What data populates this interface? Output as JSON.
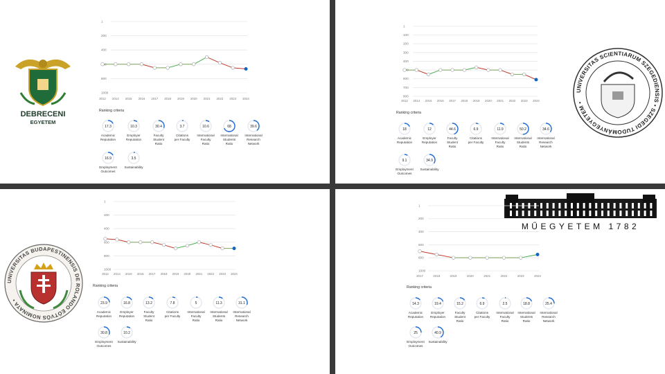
{
  "colors": {
    "rise": "#4caf50",
    "fall": "#c0392b",
    "current": "#1565c0",
    "ring": "#1e6bd6",
    "ring_track": "#e3e8ef",
    "grid": "#e6e6e6",
    "divider": "#3a3a3a"
  },
  "panels": [
    {
      "id": "debrecen",
      "logo": {
        "type": "debrecen-crest",
        "line1": "DEBRECENI",
        "line2": "EGYETEM"
      },
      "chart_data": {
        "type": "line",
        "y_ticks": [
          "1",
          "200",
          "400",
          "600",
          "800",
          "1000"
        ],
        "y_tick_values": [
          1,
          200,
          400,
          600,
          800,
          1000
        ],
        "ylim": [
          1,
          1000
        ],
        "y_inverted": true,
        "x": [
          "2012",
          "2014",
          "2015",
          "2016",
          "2017",
          "2018",
          "2019",
          "2020",
          "2021",
          "2022",
          "2023",
          "2024"
        ],
        "values": [
          600,
          600,
          600,
          600,
          650,
          650,
          600,
          600,
          500,
          580,
          650,
          665
        ],
        "grid": true
      },
      "criteria_title": "Ranking criteria",
      "criteria": [
        {
          "value": "17.3",
          "label": [
            "Academic",
            "Reputation"
          ]
        },
        {
          "value": "10.3",
          "label": [
            "Employer",
            "Reputation"
          ]
        },
        {
          "value": "30.4",
          "label": [
            "Faculty",
            "Student",
            "Ratio"
          ]
        },
        {
          "value": "3.7",
          "label": [
            "Citations",
            "per Faculty"
          ]
        },
        {
          "value": "10.6",
          "label": [
            "International",
            "Faculty",
            "Ratio"
          ]
        },
        {
          "value": "68",
          "label": [
            "International",
            "Students",
            "Ratio"
          ]
        },
        {
          "value": "39.6",
          "label": [
            "International",
            "Research",
            "Network"
          ]
        },
        {
          "value": "16.9",
          "label": [
            "Employment",
            "Outcomes"
          ]
        },
        {
          "value": "3.5",
          "label": [
            "Sustainability"
          ]
        }
      ]
    },
    {
      "id": "szeged",
      "logo": {
        "type": "szeged-seal",
        "ring_text": "UNIVERSITAS SCIENTIARUM SZEGEDIENSIS • SZEGEDI TUDOMÁNYEGYETEM •"
      },
      "chart_data": {
        "type": "line",
        "y_ticks": [
          "1",
          "100",
          "200",
          "300",
          "400",
          "500",
          "600",
          "700",
          "800"
        ],
        "y_tick_values": [
          1,
          100,
          200,
          300,
          400,
          500,
          600,
          700,
          800
        ],
        "ylim": [
          1,
          800
        ],
        "y_inverted": true,
        "x": [
          "2012",
          "2014",
          "2015",
          "2016",
          "2017",
          "2018",
          "2019",
          "2020",
          "2021",
          "2022",
          "2023",
          "2024"
        ],
        "values": [
          500,
          500,
          550,
          500,
          500,
          500,
          470,
          500,
          500,
          550,
          550,
          610
        ],
        "grid": true
      },
      "criteria_title": "Ranking criteria",
      "criteria": [
        {
          "value": "18",
          "label": [
            "Academic",
            "Reputation"
          ]
        },
        {
          "value": "12",
          "label": [
            "Employer",
            "Reputation"
          ]
        },
        {
          "value": "44.6",
          "label": [
            "Faculty",
            "Student",
            "Ratio"
          ]
        },
        {
          "value": "6.9",
          "label": [
            "Citations",
            "per Faculty"
          ]
        },
        {
          "value": "11.9",
          "label": [
            "International",
            "Faculty",
            "Ratio"
          ]
        },
        {
          "value": "50.2",
          "label": [
            "International",
            "Students",
            "Ratio"
          ]
        },
        {
          "value": "34.6",
          "label": [
            "International",
            "Research",
            "Network"
          ]
        },
        {
          "value": "9.1",
          "label": [
            "Employment",
            "Outcomes"
          ]
        },
        {
          "value": "34.9",
          "label": [
            "Sustainability"
          ]
        }
      ]
    },
    {
      "id": "elte",
      "logo": {
        "type": "elte-seal",
        "ring_text": "UNIVERSITAS BUDAPESTINENSIS DE ROLANDO EÖTVÖS NOMINATA • "
      },
      "chart_data": {
        "type": "line",
        "y_ticks": [
          "1",
          "200",
          "400",
          "600",
          "800",
          "1000"
        ],
        "y_tick_values": [
          1,
          200,
          400,
          600,
          800,
          1000
        ],
        "ylim": [
          1,
          1000
        ],
        "y_inverted": true,
        "x": [
          "2012",
          "2014",
          "2015",
          "2016",
          "2017",
          "2018",
          "2019",
          "2020",
          "2021",
          "2022",
          "2023",
          "2024"
        ],
        "values": [
          550,
          560,
          600,
          600,
          600,
          640,
          690,
          650,
          600,
          640,
          690,
          690
        ],
        "grid": true
      },
      "criteria_title": "Ranking criteria",
      "criteria": [
        {
          "value": "23.9",
          "label": [
            "Academic",
            "Reputation"
          ]
        },
        {
          "value": "16.8",
          "label": [
            "Employer",
            "Reputation"
          ]
        },
        {
          "value": "13.2",
          "label": [
            "Faculty",
            "Student",
            "Ratio"
          ]
        },
        {
          "value": "7.8",
          "label": [
            "Citations",
            "per Faculty"
          ]
        },
        {
          "value": "5",
          "label": [
            "International",
            "Faculty",
            "Ratio"
          ]
        },
        {
          "value": "11.3",
          "label": [
            "International",
            "Students",
            "Ratio"
          ]
        },
        {
          "value": "31.1",
          "label": [
            "International",
            "Research",
            "Network"
          ]
        },
        {
          "value": "30.8",
          "label": [
            "Employment",
            "Outcomes"
          ]
        },
        {
          "value": "10.2",
          "label": [
            "Sustainability"
          ]
        }
      ]
    },
    {
      "id": "bme",
      "logo": {
        "type": "bme-building",
        "caption": "MŰEGYETEM 1782"
      },
      "chart_data": {
        "type": "line",
        "y_ticks": [
          "1",
          "200",
          "400",
          "600",
          "800",
          "1000"
        ],
        "y_tick_values": [
          1,
          200,
          400,
          600,
          800,
          1000
        ],
        "ylim": [
          1,
          1000
        ],
        "y_inverted": true,
        "x": [
          "2017",
          "2018",
          "2019",
          "2020",
          "2021",
          "2022",
          "2023",
          "2024"
        ],
        "values": [
          700,
          750,
          800,
          800,
          800,
          800,
          800,
          750
        ],
        "grid": true
      },
      "criteria_title": "Ranking criteria",
      "criteria": [
        {
          "value": "14.3",
          "label": [
            "Academic",
            "Reputation"
          ]
        },
        {
          "value": "19.4",
          "label": [
            "Employer",
            "Reputation"
          ]
        },
        {
          "value": "15.2",
          "label": [
            "Faculty",
            "Student",
            "Ratio"
          ]
        },
        {
          "value": "6.9",
          "label": [
            "Citations",
            "per Faculty"
          ]
        },
        {
          "value": "2.5",
          "label": [
            "International",
            "Faculty",
            "Ratio"
          ]
        },
        {
          "value": "18.8",
          "label": [
            "International",
            "Students",
            "Ratio"
          ]
        },
        {
          "value": "25.4",
          "label": [
            "International",
            "Research",
            "Network"
          ]
        },
        {
          "value": "25",
          "label": [
            "Employment",
            "Outcomes"
          ]
        },
        {
          "value": "40.9",
          "label": [
            "Sustainability"
          ]
        }
      ]
    }
  ]
}
